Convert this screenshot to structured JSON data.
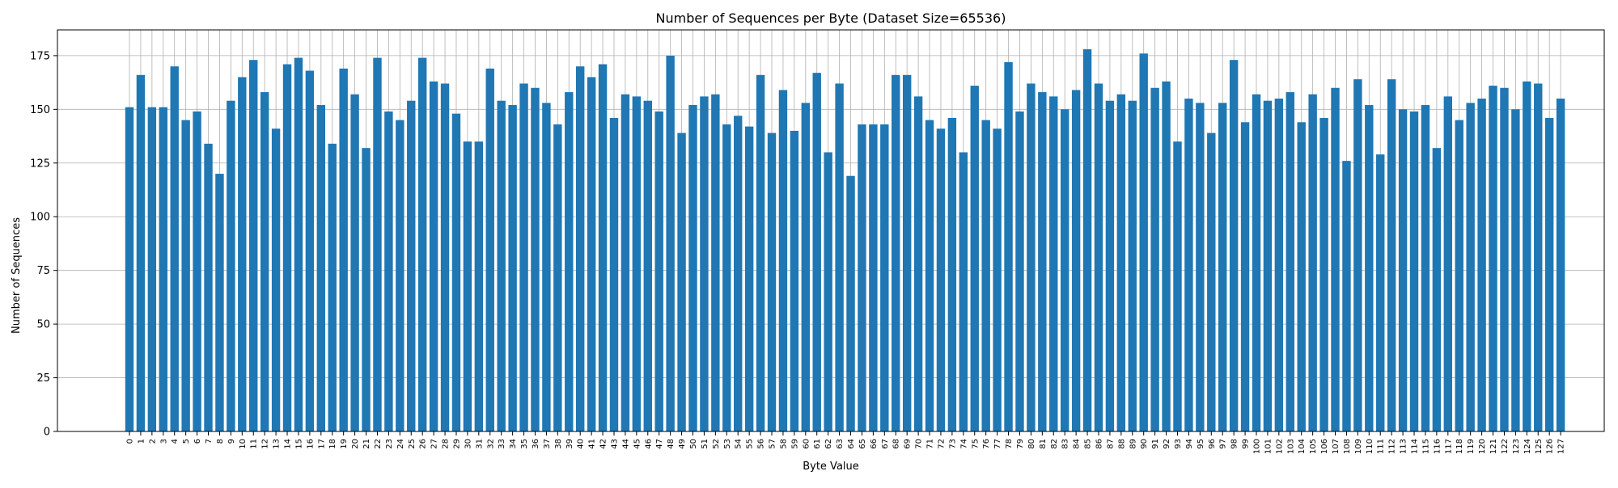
{
  "chart_data": {
    "type": "bar",
    "title": "Number of Sequences per Byte (Dataset Size=65536)",
    "xlabel": "Byte Value",
    "ylabel": "Number of Sequences",
    "ylim": [
      0,
      187
    ],
    "yticks": [
      0,
      25,
      50,
      75,
      100,
      125,
      150,
      175
    ],
    "grid": true,
    "bar_color": "#1f77b4",
    "categories": [
      "0",
      "1",
      "2",
      "3",
      "4",
      "5",
      "6",
      "7",
      "8",
      "9",
      "10",
      "11",
      "12",
      "13",
      "14",
      "15",
      "16",
      "17",
      "18",
      "19",
      "20",
      "21",
      "22",
      "23",
      "24",
      "25",
      "26",
      "27",
      "28",
      "29",
      "30",
      "31",
      "32",
      "33",
      "34",
      "35",
      "36",
      "37",
      "38",
      "39",
      "40",
      "41",
      "42",
      "43",
      "44",
      "45",
      "46",
      "47",
      "48",
      "49",
      "50",
      "51",
      "52",
      "53",
      "54",
      "55",
      "56",
      "57",
      "58",
      "59",
      "60",
      "61",
      "62",
      "63",
      "64",
      "65",
      "66",
      "67",
      "68",
      "69",
      "70",
      "71",
      "72",
      "73",
      "74",
      "75",
      "76",
      "77",
      "78",
      "79",
      "80",
      "81",
      "82",
      "83",
      "84",
      "85",
      "86",
      "87",
      "88",
      "89",
      "90",
      "91",
      "92",
      "93",
      "94",
      "95",
      "96",
      "97",
      "98",
      "99",
      "100",
      "101",
      "102",
      "103",
      "104",
      "105",
      "106",
      "107",
      "108",
      "109",
      "110",
      "111",
      "112",
      "113",
      "114",
      "115",
      "116",
      "117",
      "118",
      "119",
      "120",
      "121",
      "122",
      "123",
      "124",
      "125",
      "126",
      "127"
    ],
    "values": [
      151,
      166,
      151,
      151,
      170,
      145,
      149,
      134,
      120,
      154,
      165,
      173,
      158,
      141,
      171,
      174,
      168,
      152,
      134,
      169,
      157,
      132,
      174,
      149,
      145,
      154,
      174,
      163,
      162,
      148,
      135,
      135,
      169,
      154,
      152,
      162,
      160,
      153,
      143,
      158,
      170,
      165,
      171,
      146,
      157,
      156,
      154,
      149,
      175,
      139,
      152,
      156,
      157,
      143,
      147,
      142,
      166,
      139,
      159,
      140,
      153,
      167,
      130,
      162,
      119,
      143,
      143,
      143,
      166,
      166,
      156,
      145,
      141,
      146,
      130,
      161,
      145,
      141,
      172,
      149,
      162,
      158,
      156,
      150,
      159,
      178,
      162,
      154,
      157,
      154,
      176,
      160,
      163,
      135,
      155,
      153,
      139,
      153,
      173,
      144,
      157,
      154,
      155,
      158,
      144,
      157,
      146,
      160,
      126,
      164,
      152,
      129,
      164,
      150,
      149,
      152,
      132,
      156,
      145,
      153,
      155,
      161,
      160,
      150,
      163,
      162,
      146,
      155
    ]
  }
}
